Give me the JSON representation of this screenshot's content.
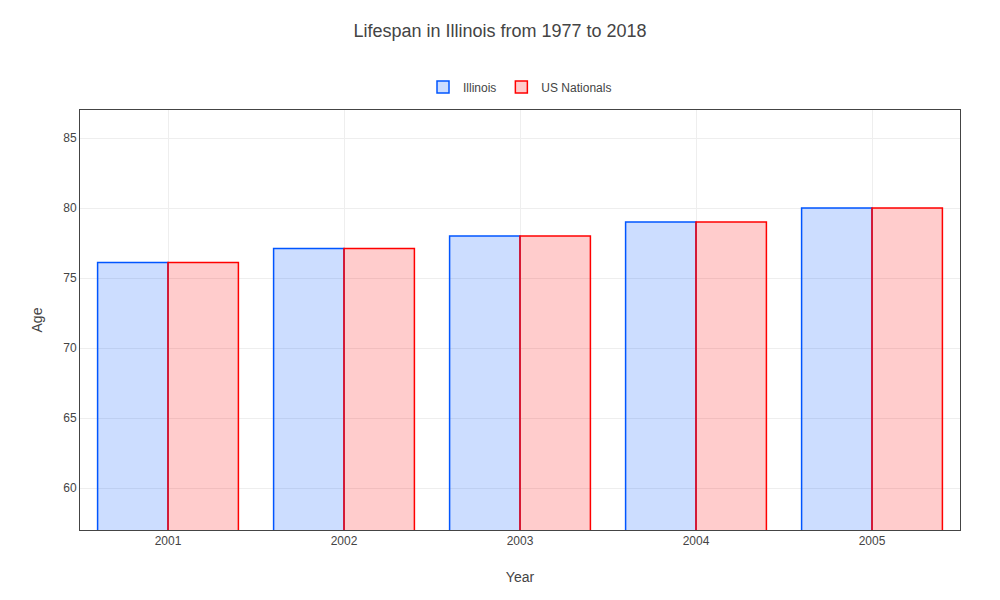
{
  "chart_data": {
    "type": "bar",
    "title": "Lifespan in Illinois from 1977 to 2018",
    "xlabel": "Year",
    "ylabel": "Age",
    "categories": [
      "2001",
      "2002",
      "2003",
      "2004",
      "2005"
    ],
    "series": [
      {
        "name": "Illinois",
        "color": "#0055ff",
        "values": [
          76.1,
          77.1,
          78.0,
          79.0,
          80.0
        ]
      },
      {
        "name": "US Nationals",
        "color": "#ff0000",
        "values": [
          76.1,
          77.1,
          78.0,
          79.0,
          80.0
        ]
      }
    ],
    "ylim": [
      57,
      87
    ],
    "yticks": [
      60,
      65,
      70,
      75,
      80,
      85
    ],
    "grid": true,
    "legend": "top"
  }
}
